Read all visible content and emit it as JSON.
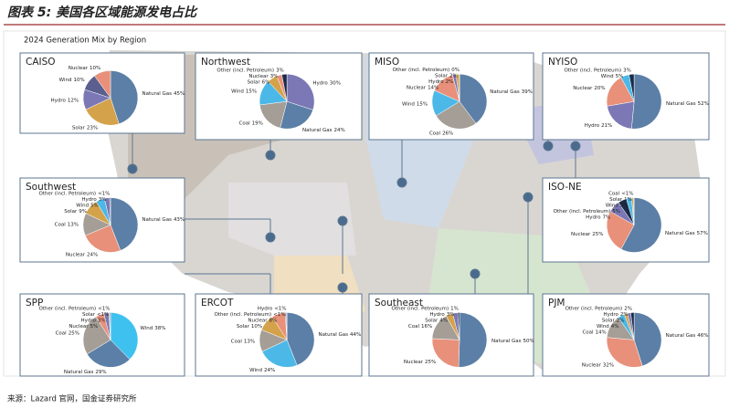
{
  "title": "图表 5: 美国各区域能源发电占比",
  "subtitle": "2024 Generation Mix by Region",
  "source": "来源：Lazard 官网，国金证券研究所",
  "chart_data": [
    {
      "type": "pie",
      "title": "CAISO",
      "categories": [
        "Natural Gas",
        "Solar",
        "Hydro",
        "Wind",
        "Nuclear"
      ],
      "values": [
        45,
        23,
        12,
        10,
        10
      ],
      "value_labels": [
        "45%",
        "23%",
        "12%",
        "10%",
        "10%"
      ],
      "colors": [
        "#5b7fa6",
        "#d4a24a",
        "#7b78b5",
        "#5a5f8f",
        "#e8907a"
      ]
    },
    {
      "type": "pie",
      "title": "Northwest",
      "categories": [
        "Hydro",
        "Natural Gas",
        "Coal",
        "Wind",
        "Solar",
        "Nuclear",
        "Other (incl. Petroleum)"
      ],
      "values": [
        30,
        24,
        19,
        15,
        6,
        3,
        3
      ],
      "value_labels": [
        "30%",
        "24%",
        "19%",
        "15%",
        "6%",
        "3%",
        "3%"
      ],
      "colors": [
        "#7b78b5",
        "#5b7fa6",
        "#a59e96",
        "#4bb8e8",
        "#d4a24a",
        "#e8907a",
        "#1a2b4a"
      ]
    },
    {
      "type": "pie",
      "title": "MISO",
      "categories": [
        "Natural Gas",
        "Coal",
        "Wind",
        "Nuclear",
        "Hydro",
        "Solar",
        "Other (incl. Petroleum)"
      ],
      "values": [
        39,
        26,
        15,
        14,
        2,
        2,
        0
      ],
      "value_labels": [
        "39%",
        "26%",
        "15%",
        "14%",
        "2%",
        "2%",
        "0%"
      ],
      "colors": [
        "#5b7fa6",
        "#a59e96",
        "#4bb8e8",
        "#e8907a",
        "#7b78b5",
        "#d4a24a",
        "#1a2b4a"
      ]
    },
    {
      "type": "pie",
      "title": "NYISO",
      "categories": [
        "Natural Gas",
        "Hydro",
        "Nuclear",
        "Wind",
        "Other (incl. Petroleum)"
      ],
      "values": [
        52,
        21,
        20,
        5,
        3
      ],
      "value_labels": [
        "52%",
        "21%",
        "20%",
        "5%",
        "3%"
      ],
      "colors": [
        "#5b7fa6",
        "#7b78b5",
        "#e8907a",
        "#4bb8e8",
        "#1a2b4a"
      ]
    },
    {
      "type": "pie",
      "title": "Southwest",
      "categories": [
        "Natural Gas",
        "Nuclear",
        "Coal",
        "Solar",
        "Wind",
        "Hydro",
        "Other (incl. Petroleum)"
      ],
      "values": [
        43,
        24,
        13,
        9,
        5,
        3,
        0.5
      ],
      "value_labels": [
        "43%",
        "24%",
        "13%",
        "9%",
        "5%",
        "3%",
        "<1%"
      ],
      "colors": [
        "#5b7fa6",
        "#e8907a",
        "#a59e96",
        "#d4a24a",
        "#4bb8e8",
        "#7b78b5",
        "#1a2b4a"
      ]
    },
    {
      "type": "pie",
      "title": "ISO-NE",
      "categories": [
        "Natural Gas",
        "Nuclear",
        "Hydro",
        "Other (incl. Petroleum)",
        "Wind",
        "Solar",
        "Coal"
      ],
      "values": [
        57,
        25,
        7,
        5,
        3,
        1,
        0.5
      ],
      "value_labels": [
        "57%",
        "25%",
        "7%",
        "5%",
        "3%",
        "1%",
        "<1%"
      ],
      "colors": [
        "#5b7fa6",
        "#e8907a",
        "#7b78b5",
        "#1a2b4a",
        "#4bb8e8",
        "#d4a24a",
        "#a59e96"
      ]
    },
    {
      "type": "pie",
      "title": "SPP",
      "categories": [
        "Wind",
        "Natural Gas",
        "Coal",
        "Nuclear",
        "Hydro",
        "Solar",
        "Other (incl. Petroleum)"
      ],
      "values": [
        38,
        29,
        25,
        5,
        3,
        0.5,
        0.5
      ],
      "value_labels": [
        "38%",
        "29%",
        "25%",
        "5%",
        "3%",
        "<1%",
        "<1%"
      ],
      "colors": [
        "#3fc1f0",
        "#5b7fa6",
        "#a59e96",
        "#e8907a",
        "#7b78b5",
        "#d4a24a",
        "#1a2b4a"
      ]
    },
    {
      "type": "pie",
      "title": "ERCOT",
      "categories": [
        "Natural Gas",
        "Wind",
        "Coal",
        "Solar",
        "Nuclear",
        "Other (incl. Petroleum)",
        "Hydro"
      ],
      "values": [
        44,
        24,
        13,
        10,
        8,
        0.5,
        0.5
      ],
      "value_labels": [
        "44%",
        "24%",
        "13%",
        "10%",
        "8%",
        "<1%",
        "<1%"
      ],
      "colors": [
        "#5b7fa6",
        "#4bb8e8",
        "#a59e96",
        "#d4a24a",
        "#e8907a",
        "#1a2b4a",
        "#7b78b5"
      ]
    },
    {
      "type": "pie",
      "title": "Southeast",
      "categories": [
        "Natural Gas",
        "Nuclear",
        "Coal",
        "Solar",
        "Hydro",
        "Other (incl. Petroleum)"
      ],
      "values": [
        50,
        25,
        16,
        4,
        3,
        1
      ],
      "value_labels": [
        "50%",
        "25%",
        "16%",
        "4%",
        "3%",
        "1%"
      ],
      "colors": [
        "#5b7fa6",
        "#e8907a",
        "#a59e96",
        "#d4a24a",
        "#7b78b5",
        "#1a2b4a"
      ]
    },
    {
      "type": "pie",
      "title": "PJM",
      "categories": [
        "Natural Gas",
        "Nuclear",
        "Coal",
        "Wind",
        "Solar",
        "Hydro",
        "Other (incl. Petroleum)"
      ],
      "values": [
        46,
        32,
        14,
        4,
        2,
        2,
        2
      ],
      "value_labels": [
        "46%",
        "32%",
        "14%",
        "4%",
        "2%",
        "2%",
        "2%"
      ],
      "colors": [
        "#5b7fa6",
        "#e8907a",
        "#a59e96",
        "#4bb8e8",
        "#d4a24a",
        "#7b78b5",
        "#1a2b4a"
      ]
    }
  ]
}
